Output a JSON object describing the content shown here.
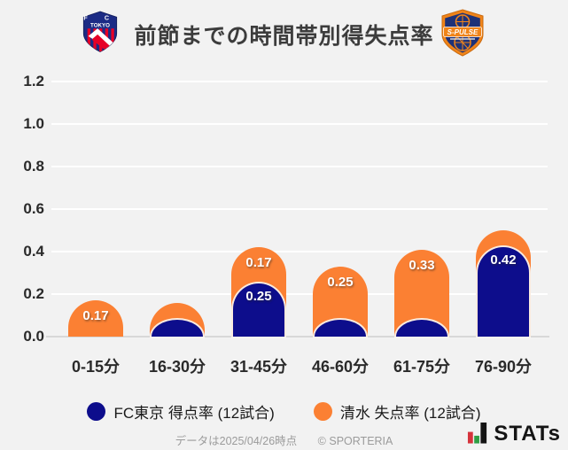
{
  "header": {
    "title": "前節までの時間帯別得失点率"
  },
  "logos": {
    "left": {
      "icon": "fc-tokyo-crest-icon",
      "initials": "F C",
      "text": "TOKYO"
    },
    "right": {
      "icon": "s-pulse-crest-icon",
      "text": "S-PULSE"
    }
  },
  "chart_data": {
    "type": "bar",
    "variant": "stacked_rounded_top",
    "title": "前節までの時間帯別得失点率",
    "categories": [
      "0-15分",
      "16-30分",
      "31-45分",
      "46-60分",
      "61-75分",
      "76-90分"
    ],
    "series": [
      {
        "name": "FC東京 得点率 (12試合)",
        "color": "#0d0d8c",
        "values": [
          0,
          0.08,
          0.25,
          0.08,
          0.08,
          0.42
        ],
        "value_labels": [
          "",
          "",
          "0.25",
          "",
          "",
          "0.42"
        ]
      },
      {
        "name": "清水 失点率 (12試合)",
        "color": "#fb8033",
        "values": [
          0.17,
          0.08,
          0.17,
          0.25,
          0.33,
          0.08
        ],
        "value_labels": [
          "0.17",
          "",
          "0.17",
          "0.25",
          "0.33",
          ""
        ]
      }
    ],
    "stacking": "orange segment drawn behind as cumulative total (blue + orange); blue drawn in front from zero",
    "xlabel": "",
    "ylabel": "",
    "ylim": [
      0,
      1.2
    ],
    "yticks": [
      0,
      0.2,
      0.4,
      0.6,
      0.8,
      1.0,
      1.2
    ],
    "ytick_labels": [
      "0.0",
      "0.2",
      "0.4",
      "0.6",
      "0.8",
      "1.0",
      "1.2"
    ],
    "grid": true,
    "legend_position": "bottom"
  },
  "legend": {
    "items": [
      {
        "label": "FC東京 得点率 (12試合)",
        "color": "#0d0d8c"
      },
      {
        "label": "清水 失点率 (12試合)",
        "color": "#fb8033"
      }
    ]
  },
  "footer": {
    "note": "データは2025/04/26時点",
    "copyright": "© SPORTERIA",
    "brand": "STATs"
  },
  "colors": {
    "background": "#f2f2f2",
    "gridline": "#ffffff",
    "axis_line": "#d8d8d8",
    "bar_blue": "#0d0d8c",
    "bar_orange": "#fb8033",
    "bar_label": "#ffffff",
    "title_text": "#3c3c3c",
    "tick_text": "#2a2a2a",
    "legend_text": "#1a1a1a",
    "footer_text": "#9b9b9b",
    "brand_red": "#d5333c",
    "brand_green": "#2f9e44",
    "brand_black": "#141414"
  }
}
